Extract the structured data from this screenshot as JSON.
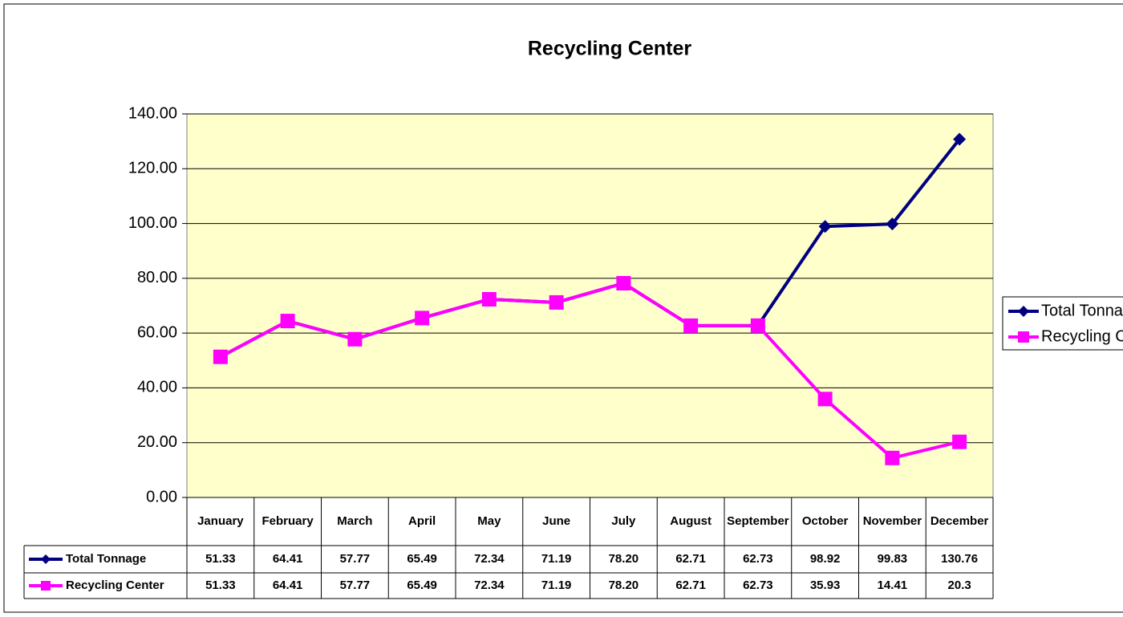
{
  "chart_data": {
    "type": "line",
    "title": "Recycling Center",
    "categories": [
      "January",
      "February",
      "March",
      "April",
      "May",
      "June",
      "July",
      "August",
      "September",
      "October",
      "November",
      "December"
    ],
    "series": [
      {
        "name": "Total Tonnage",
        "color": "#000080",
        "marker": "diamond",
        "values": [
          51.33,
          64.41,
          57.77,
          65.49,
          72.34,
          71.19,
          78.2,
          62.71,
          62.73,
          98.92,
          99.83,
          130.76
        ],
        "value_labels": [
          "51.33",
          "64.41",
          "57.77",
          "65.49",
          "72.34",
          "71.19",
          "78.20",
          "62.71",
          "62.73",
          "98.92",
          "99.83",
          "130.76"
        ]
      },
      {
        "name": "Recycling Center",
        "color": "#ff00ff",
        "marker": "square",
        "values": [
          51.33,
          64.41,
          57.77,
          65.49,
          72.34,
          71.19,
          78.2,
          62.71,
          62.73,
          35.93,
          14.41,
          20.3
        ],
        "value_labels": [
          "51.33",
          "64.41",
          "57.77",
          "65.49",
          "72.34",
          "71.19",
          "78.20",
          "62.71",
          "62.73",
          "35.93",
          "14.41",
          "20.3"
        ]
      }
    ],
    "ylim": [
      0,
      140
    ],
    "yticks": [
      {
        "value": 0,
        "label": "0.00"
      },
      {
        "value": 20,
        "label": "20.00"
      },
      {
        "value": 40,
        "label": "40.00"
      },
      {
        "value": 60,
        "label": "60.00"
      },
      {
        "value": 80,
        "label": "80.00"
      },
      {
        "value": 100,
        "label": "100.00"
      },
      {
        "value": 120,
        "label": "120.00"
      },
      {
        "value": 140,
        "label": "140.00"
      }
    ],
    "grid": true,
    "plot_background": "#ffffcc",
    "legend": "right"
  }
}
